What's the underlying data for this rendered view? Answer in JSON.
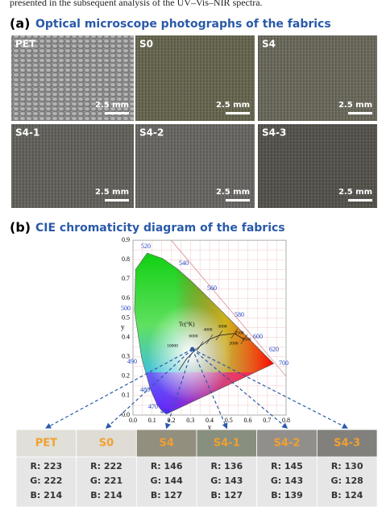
{
  "header": {
    "text": "presented in the subsequent analysis of the UV–Vis–NIR spectra."
  },
  "panel_a": {
    "label": "(a)",
    "title": "Optical microscope photographs of the fabrics",
    "photos": [
      {
        "label": "PET",
        "scale": "2.5 mm"
      },
      {
        "label": "S0",
        "scale": "2.5 mm"
      },
      {
        "label": "S4",
        "scale": "2.5 mm"
      },
      {
        "label": "S4-1",
        "scale": "2.5 mm"
      },
      {
        "label": "S4-2",
        "scale": "2.5 mm"
      },
      {
        "label": "S4-3",
        "scale": "2.5 mm"
      }
    ]
  },
  "panel_b": {
    "label": "(b)",
    "title": "CIE chromaticity diagram of the fabrics",
    "diagram": {
      "x_label": "x",
      "y_label": "y",
      "xticks": [
        "0.0",
        "0.1",
        "0.2",
        "0.3",
        "0.4",
        "0.5",
        "0.6",
        "0.7",
        "0.8"
      ],
      "yticks": [
        "0.9",
        "0.8",
        "0.7",
        "0.6",
        "0.5",
        "0.4",
        "0.3",
        "0.2",
        "0.1",
        "0.0"
      ],
      "wavelengths": [
        "520",
        "540",
        "560",
        "580",
        "600",
        "620",
        "700",
        "500",
        "490",
        "480",
        "470",
        "460"
      ],
      "temperature_title": "Tc(°K)",
      "temperatures": [
        "6000",
        "4000",
        "3000",
        "2500",
        "2000",
        "1500",
        "10000"
      ]
    },
    "table": {
      "columns": [
        {
          "name": "PET",
          "r": "R: 223",
          "g": "G: 222",
          "b": "B: 214"
        },
        {
          "name": "S0",
          "r": "R: 222",
          "g": "G: 221",
          "b": "B: 214"
        },
        {
          "name": "S4",
          "r": "R: 146",
          "g": "G: 144",
          "b": "B: 127"
        },
        {
          "name": "S4-1",
          "r": "R: 136",
          "g": "G: 143",
          "b": "B: 127"
        },
        {
          "name": "S4-2",
          "r": "R: 145",
          "g": "G: 143",
          "b": "B: 139"
        },
        {
          "name": "S4-3",
          "r": "R: 130",
          "g": "G: 128",
          "b": "B: 124"
        }
      ]
    }
  }
}
